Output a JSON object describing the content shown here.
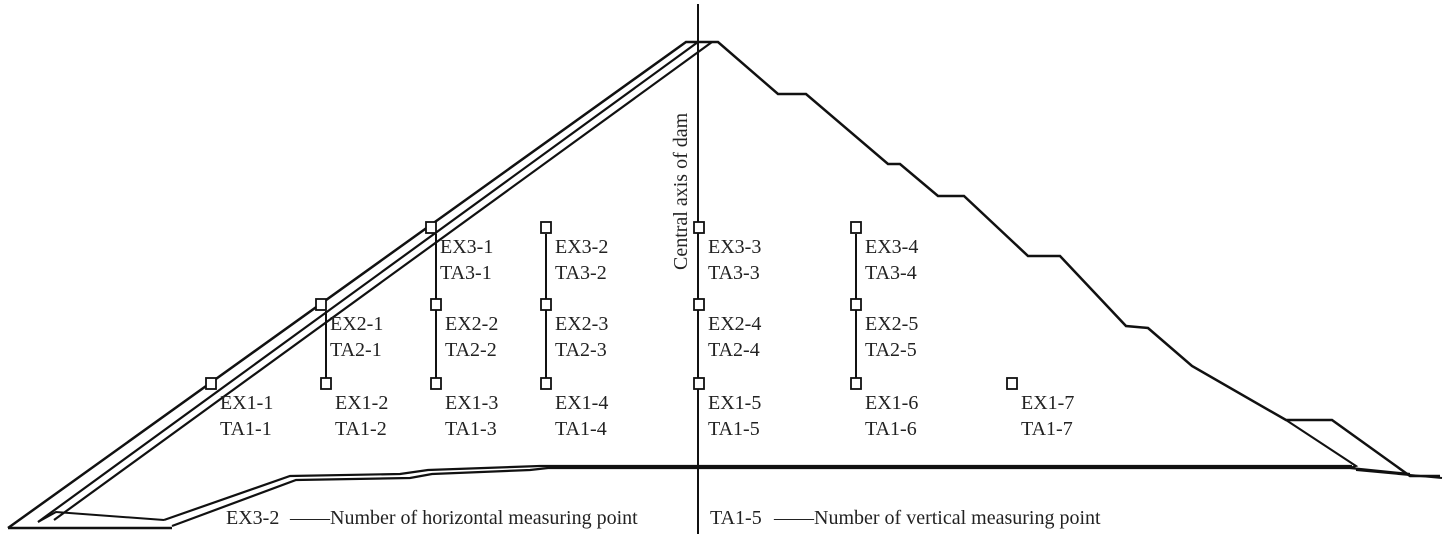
{
  "axis_label": "Central axis of dam",
  "legend": {
    "horizontal_code": "EX3-2",
    "horizontal_text": "——Number of horizontal measuring point",
    "vertical_code": "TA1-5",
    "vertical_text": "——Number of vertical measuring point"
  },
  "points": [
    {
      "ex": "EX1-1",
      "ta": "TA1-1"
    },
    {
      "ex": "EX1-2",
      "ta": "TA1-2"
    },
    {
      "ex": "EX1-3",
      "ta": "TA1-3"
    },
    {
      "ex": "EX1-4",
      "ta": "TA1-4"
    },
    {
      "ex": "EX1-5",
      "ta": "TA1-5"
    },
    {
      "ex": "EX1-6",
      "ta": "TA1-6"
    },
    {
      "ex": "EX1-7",
      "ta": "TA1-7"
    },
    {
      "ex": "EX2-1",
      "ta": "TA2-1"
    },
    {
      "ex": "EX2-2",
      "ta": "TA2-2"
    },
    {
      "ex": "EX2-3",
      "ta": "TA2-3"
    },
    {
      "ex": "EX2-4",
      "ta": "TA2-4"
    },
    {
      "ex": "EX2-5",
      "ta": "TA2-5"
    },
    {
      "ex": "EX3-1",
      "ta": "TA3-1"
    },
    {
      "ex": "EX3-2",
      "ta": "TA3-2"
    },
    {
      "ex": "EX3-3",
      "ta": "TA3-3"
    },
    {
      "ex": "EX3-4",
      "ta": "TA3-4"
    }
  ]
}
